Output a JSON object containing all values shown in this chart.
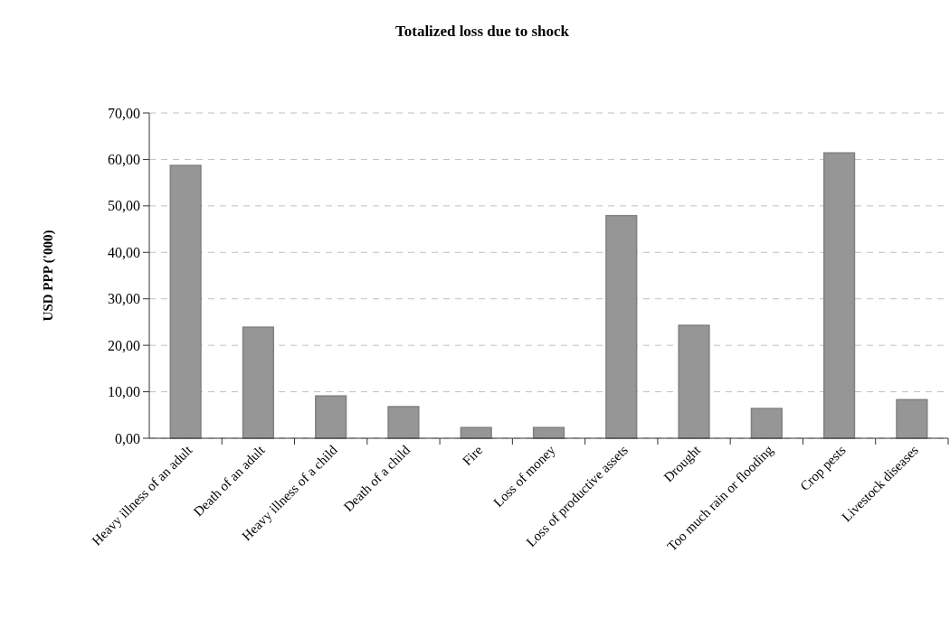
{
  "chart_data": {
    "type": "bar",
    "title": "Totalized loss due to shock",
    "ylabel": "USD PPP ('000)",
    "categories": [
      "Heavy illness of an adult",
      "Death of an adult",
      "Heavy illness of a child",
      "Death of a child",
      "Fire",
      "Loss of money",
      "Loss of productive assets",
      "Drought",
      "Too much rain or flooding",
      "Crop pests",
      "Livestock diseases"
    ],
    "values": [
      58.7,
      23.9,
      9.1,
      6.8,
      2.3,
      2.3,
      47.9,
      24.3,
      6.4,
      61.4,
      8.3
    ],
    "color": "#969696",
    "ylim": [
      0,
      70
    ],
    "yticks": [
      {
        "value": 0,
        "label": "0,00"
      },
      {
        "value": 10,
        "label": "10,00"
      },
      {
        "value": 20,
        "label": "20,00"
      },
      {
        "value": 30,
        "label": "30,00"
      },
      {
        "value": 40,
        "label": "40,00"
      },
      {
        "value": 50,
        "label": "50,00"
      },
      {
        "value": 60,
        "label": "60,00"
      },
      {
        "value": 70,
        "label": "70,00"
      }
    ],
    "grid": "y"
  }
}
